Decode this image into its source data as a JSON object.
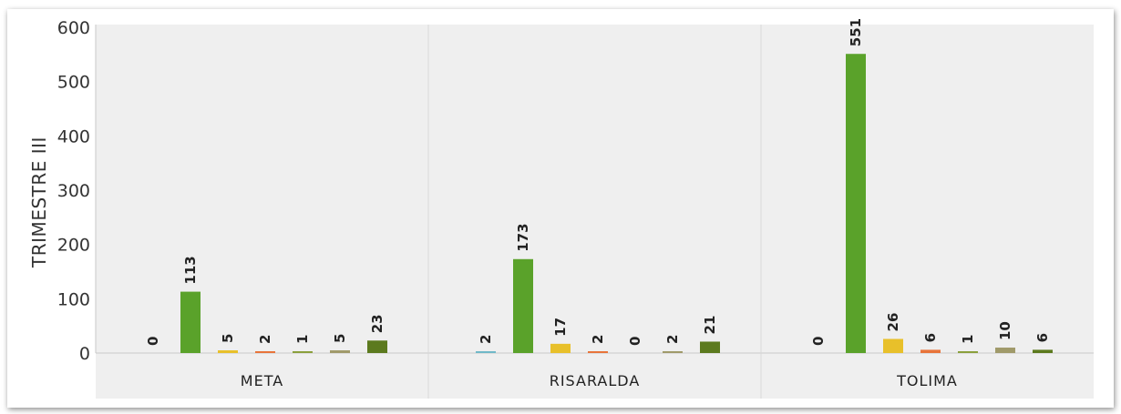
{
  "chart_data": {
    "type": "bar",
    "ylabel": "TRIMESTRE III",
    "xlabel": "",
    "ylim": [
      0,
      600
    ],
    "yticks": [
      0,
      100,
      200,
      300,
      400,
      500,
      600
    ],
    "grid": "vertical separators between categories",
    "categories": [
      "META",
      "RISARALDA",
      "TOLIMA"
    ],
    "series": [
      {
        "color": "#70b8c8",
        "values": [
          0,
          2,
          0
        ]
      },
      {
        "color": "#5aa22a",
        "values": [
          113,
          173,
          551
        ]
      },
      {
        "color": "#e8c02a",
        "values": [
          5,
          17,
          26
        ]
      },
      {
        "color": "#e8743a",
        "values": [
          2,
          2,
          6
        ]
      },
      {
        "color": "#8aa03c",
        "values": [
          1,
          0,
          1
        ]
      },
      {
        "color": "#a09a6a",
        "values": [
          5,
          2,
          10
        ]
      },
      {
        "color": "#5c7a1e",
        "values": [
          23,
          21,
          6
        ]
      }
    ]
  }
}
